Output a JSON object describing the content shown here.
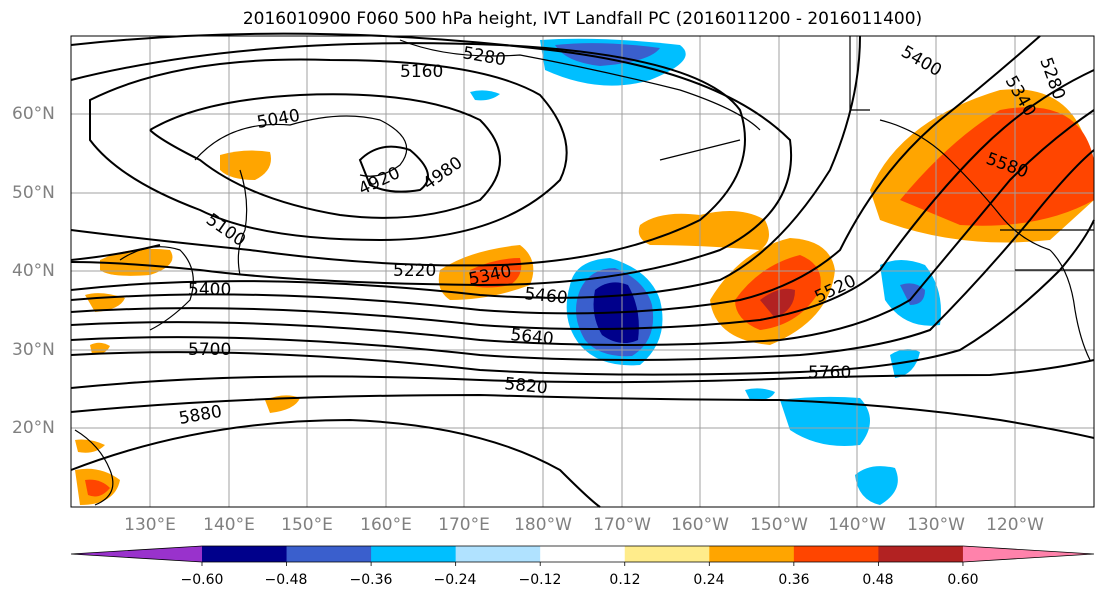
{
  "title": "2016010900 F060 500 hPa height, IVT Landfall PC (2016011200 - 2016011400)",
  "lat_labels": [
    "60°N",
    "50°N",
    "40°N",
    "30°N",
    "20°N"
  ],
  "lon_labels": [
    "130°E",
    "140°E",
    "150°E",
    "160°E",
    "170°E",
    "180°W",
    "170°W",
    "160°W",
    "150°W",
    "140°W",
    "130°W",
    "120°W"
  ],
  "contour_labels": [
    "5280",
    "5160",
    "5040",
    "4920",
    "4980",
    "5100",
    "5220",
    "5340",
    "5400",
    "5460",
    "5640",
    "5700",
    "5820",
    "5880",
    "5760",
    "5520",
    "5400",
    "5340",
    "5280",
    "5580"
  ],
  "colorbar": {
    "ticks": [
      "−0.60",
      "−0.48",
      "−0.36",
      "−0.24",
      "−0.12",
      "0.12",
      "0.24",
      "0.36",
      "0.48",
      "0.60"
    ],
    "colors": [
      "#9932cc",
      "#00008b",
      "#3a5fcd",
      "#00bfff",
      "#b0e2ff",
      "#ffffff",
      "#ffec8b",
      "#ffa500",
      "#ff4500",
      "#b22222",
      "#ff82ab"
    ]
  }
}
